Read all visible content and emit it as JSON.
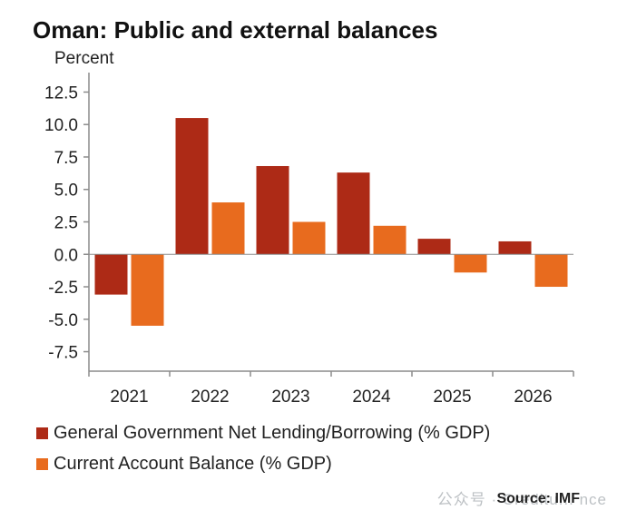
{
  "chart_data": {
    "type": "bar",
    "title": "Oman: Public and external balances",
    "ylabel": "Percent",
    "categories": [
      "2021",
      "2022",
      "2023",
      "2024",
      "2025",
      "2026"
    ],
    "series": [
      {
        "name": "General Government Net Lending/Borrowing (% GDP)",
        "values": [
          -3.1,
          10.5,
          6.8,
          6.3,
          1.2,
          1.0
        ],
        "color": "#ad2a16"
      },
      {
        "name": "Current Account Balance (% GDP)",
        "values": [
          -5.5,
          4.0,
          2.5,
          2.2,
          -1.4,
          -2.5
        ],
        "color": "#e86b1e"
      }
    ],
    "ylim": [
      -9.0,
      14.0
    ],
    "yticks": [
      "12.5",
      "10.0",
      "7.5",
      "5.0",
      "2.5",
      "0.0",
      "-2.5",
      "-5.0",
      "-7.5"
    ],
    "ytick_values": [
      12.5,
      10.0,
      7.5,
      5.0,
      2.5,
      0.0,
      -2.5,
      -5.0,
      -7.5
    ],
    "grid": false,
    "legend_placement": "bottom",
    "source": "Source: IMF"
  },
  "watermark": "公众号 · Creditu... nce"
}
